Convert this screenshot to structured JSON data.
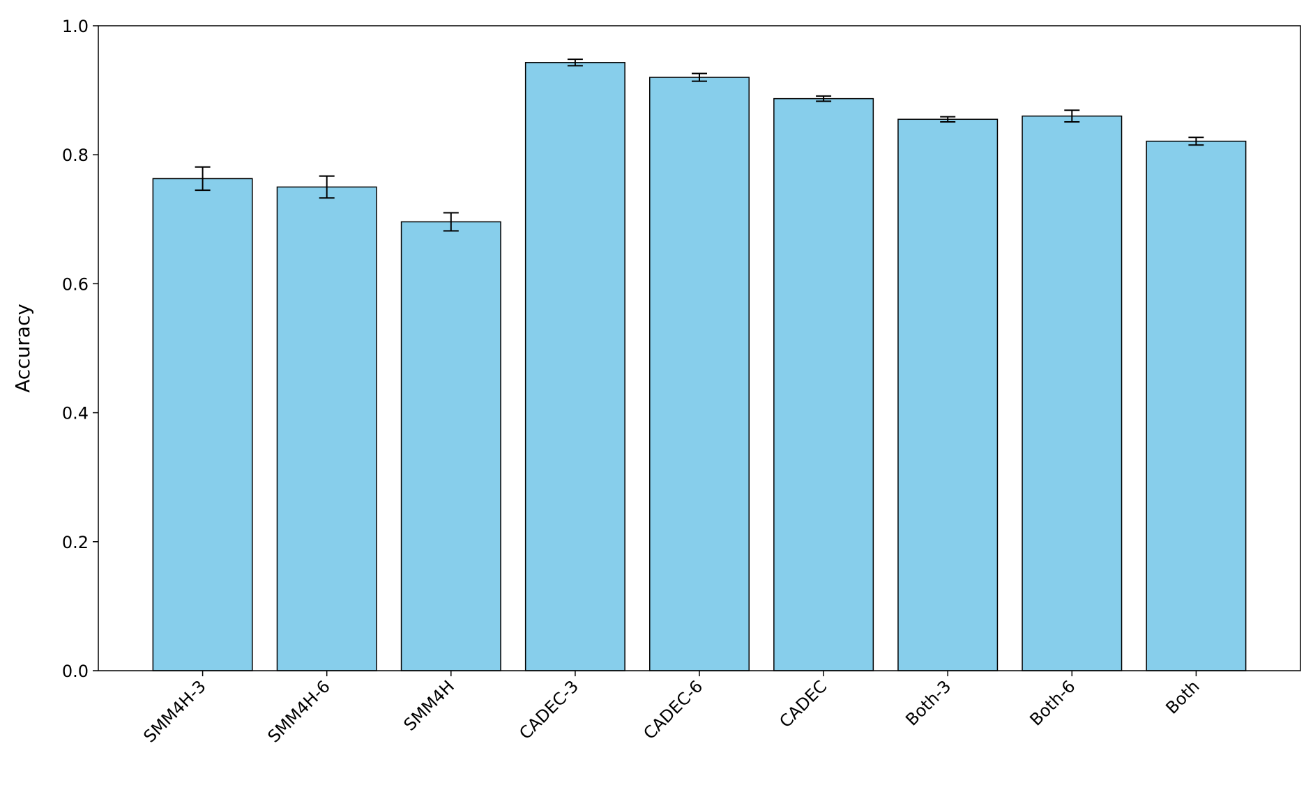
{
  "chart_data": {
    "type": "bar",
    "ylabel": "Accuracy",
    "categories": [
      "SMM4H-3",
      "SMM4H-6",
      "SMM4H",
      "CADEC-3",
      "CADEC-6",
      "CADEC",
      "Both-3",
      "Both-6",
      "Both"
    ],
    "values": [
      0.763,
      0.75,
      0.696,
      0.943,
      0.92,
      0.887,
      0.855,
      0.86,
      0.821
    ],
    "errors": [
      0.018,
      0.017,
      0.014,
      0.005,
      0.006,
      0.004,
      0.004,
      0.009,
      0.006
    ],
    "color": "#87ceeb",
    "ylim": [
      0,
      1
    ],
    "yticks": [
      {
        "value": 0,
        "label": "0.0"
      },
      0.2,
      0.4,
      0.6,
      0.8,
      {
        "value": 1,
        "label": "1.0"
      }
    ],
    "grid": false
  }
}
